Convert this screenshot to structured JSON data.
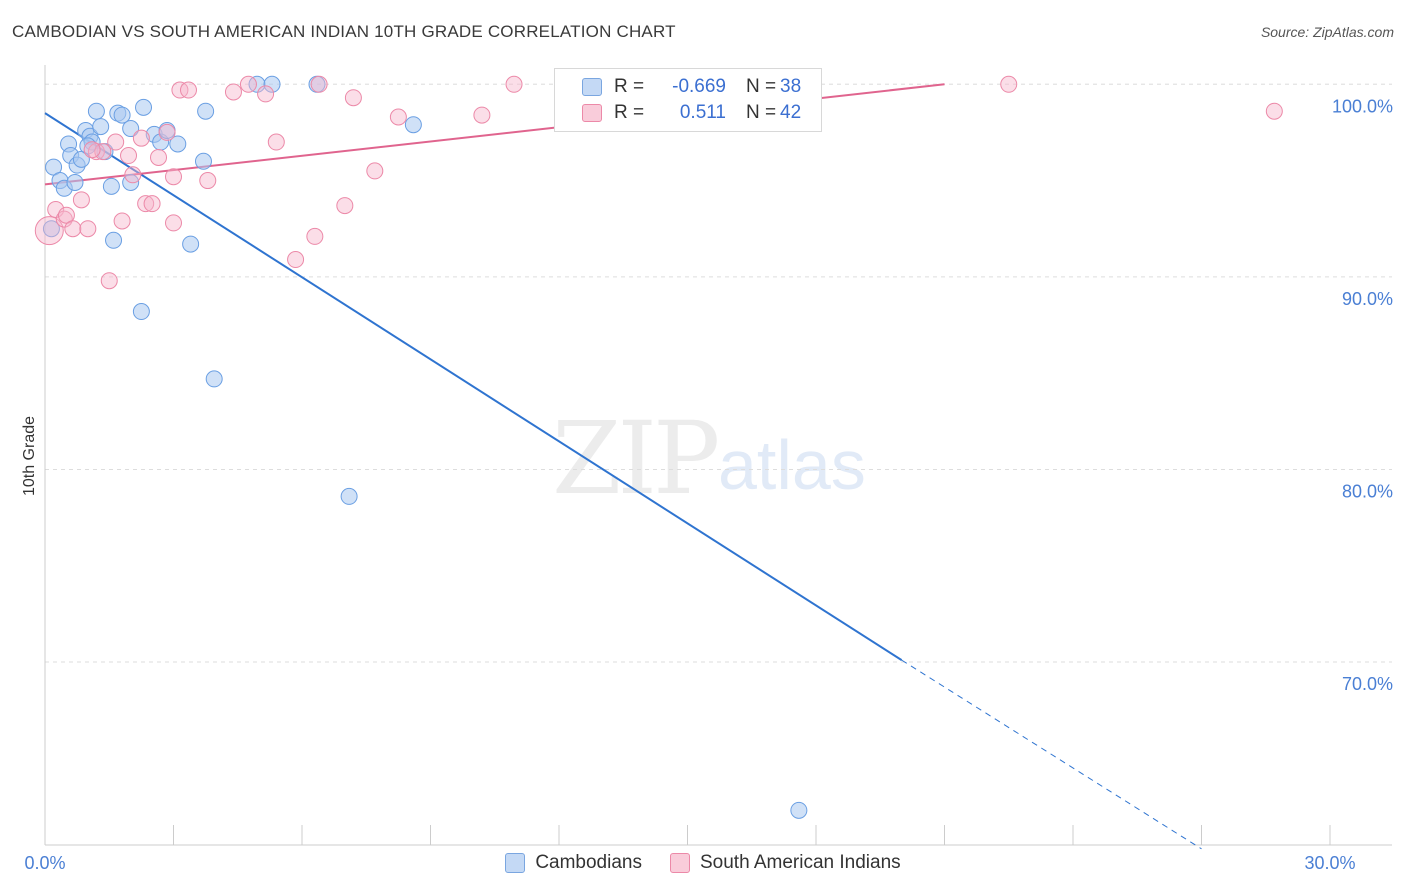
{
  "header": {
    "title": "CAMBODIAN VS SOUTH AMERICAN INDIAN 10TH GRADE CORRELATION CHART",
    "source": "Source: ZipAtlas.com"
  },
  "watermark": {
    "zip": "ZIP",
    "atlas": "atlas"
  },
  "legend": {
    "rows": [
      {
        "r_label": "R =",
        "r_value": "-0.669",
        "n_label": "N =",
        "n_value": "38",
        "color": "#a9c8f0"
      },
      {
        "r_label": "R =",
        "r_value": "0.511",
        "n_label": "N =",
        "n_value": "42",
        "color": "#f6b6cb"
      }
    ]
  },
  "bottom_legend": {
    "cambodians": "Cambodians",
    "south_american_indians": "South American Indians"
  },
  "chart_data": {
    "type": "scatter",
    "title": "CAMBODIAN VS SOUTH AMERICAN INDIAN 10TH GRADE CORRELATION CHART",
    "xlabel": "",
    "ylabel": "10th Grade",
    "xlim": [
      0,
      30
    ],
    "ylim": [
      60.5,
      101
    ],
    "x_tick_labels": [
      "0.0%",
      "30.0%"
    ],
    "y_ticks": [
      70,
      80,
      90,
      100
    ],
    "y_tick_labels": [
      "70.0%",
      "80.0%",
      "90.0%",
      "100.0%"
    ],
    "grid": true,
    "colors": {
      "cambodians": "#6a9fe3",
      "south_american_indians": "#ec89a8",
      "blue_line": "#2f74d0",
      "pink_line": "#e0648e"
    },
    "series": [
      {
        "name": "Cambodians",
        "points": [
          [
            0.2,
            95.7
          ],
          [
            0.35,
            95.0
          ],
          [
            0.45,
            94.6
          ],
          [
            0.55,
            96.9
          ],
          [
            0.6,
            96.3
          ],
          [
            0.7,
            94.9
          ],
          [
            0.75,
            95.8
          ],
          [
            0.85,
            96.1
          ],
          [
            0.95,
            97.6
          ],
          [
            1.05,
            97.3
          ],
          [
            1.1,
            97.0
          ],
          [
            1.2,
            98.6
          ],
          [
            1.3,
            97.8
          ],
          [
            1.4,
            96.5
          ],
          [
            1.55,
            94.7
          ],
          [
            1.6,
            91.9
          ],
          [
            1.7,
            98.5
          ],
          [
            1.8,
            98.4
          ],
          [
            2.0,
            94.9
          ],
          [
            2.0,
            97.7
          ],
          [
            2.25,
            88.2
          ],
          [
            2.3,
            98.8
          ],
          [
            2.55,
            97.4
          ],
          [
            2.7,
            97.0
          ],
          [
            2.85,
            97.6
          ],
          [
            3.1,
            96.9
          ],
          [
            3.4,
            91.7
          ],
          [
            3.7,
            96.0
          ],
          [
            3.75,
            98.6
          ],
          [
            3.95,
            84.7
          ],
          [
            4.95,
            100.0
          ],
          [
            5.3,
            100.0
          ],
          [
            6.35,
            100.0
          ],
          [
            7.1,
            78.6
          ],
          [
            8.6,
            97.9
          ],
          [
            17.6,
            62.3
          ],
          [
            0.15,
            92.5
          ],
          [
            1.0,
            96.8
          ]
        ]
      },
      {
        "name": "South American Indians",
        "points": [
          [
            0.1,
            92.4
          ],
          [
            0.25,
            93.5
          ],
          [
            0.45,
            93.0
          ],
          [
            0.5,
            93.2
          ],
          [
            0.65,
            92.5
          ],
          [
            0.85,
            94.0
          ],
          [
            1.0,
            92.5
          ],
          [
            1.2,
            96.5
          ],
          [
            1.35,
            96.5
          ],
          [
            1.5,
            89.8
          ],
          [
            1.65,
            97.0
          ],
          [
            1.8,
            92.9
          ],
          [
            1.95,
            96.3
          ],
          [
            2.05,
            95.3
          ],
          [
            2.25,
            97.2
          ],
          [
            2.35,
            93.8
          ],
          [
            2.5,
            93.8
          ],
          [
            2.65,
            96.2
          ],
          [
            2.85,
            97.5
          ],
          [
            3.0,
            92.8
          ],
          [
            3.0,
            95.2
          ],
          [
            3.15,
            99.7
          ],
          [
            3.35,
            99.7
          ],
          [
            3.8,
            95.0
          ],
          [
            4.4,
            99.6
          ],
          [
            4.75,
            100.0
          ],
          [
            5.15,
            99.5
          ],
          [
            5.4,
            97.0
          ],
          [
            5.85,
            90.9
          ],
          [
            6.3,
            92.1
          ],
          [
            6.4,
            100.0
          ],
          [
            7.0,
            93.7
          ],
          [
            7.2,
            99.3
          ],
          [
            7.7,
            95.5
          ],
          [
            8.25,
            98.3
          ],
          [
            10.2,
            98.4
          ],
          [
            10.95,
            100.0
          ],
          [
            13.65,
            98.4
          ],
          [
            13.75,
            100.0
          ],
          [
            22.5,
            100.0
          ],
          [
            28.7,
            98.6
          ],
          [
            1.1,
            96.6
          ]
        ]
      }
    ],
    "trend_lines": [
      {
        "series": "Cambodians",
        "x0": 0.0,
        "y0": 98.5,
        "x1": 20.0,
        "y1": 70.1,
        "dashed_to_x": 27.0,
        "dashed_to_y": 60.3
      },
      {
        "series": "South American Indians",
        "x0": 0.0,
        "y0": 94.8,
        "x1": 21.0,
        "y1": 100.0
      }
    ]
  }
}
